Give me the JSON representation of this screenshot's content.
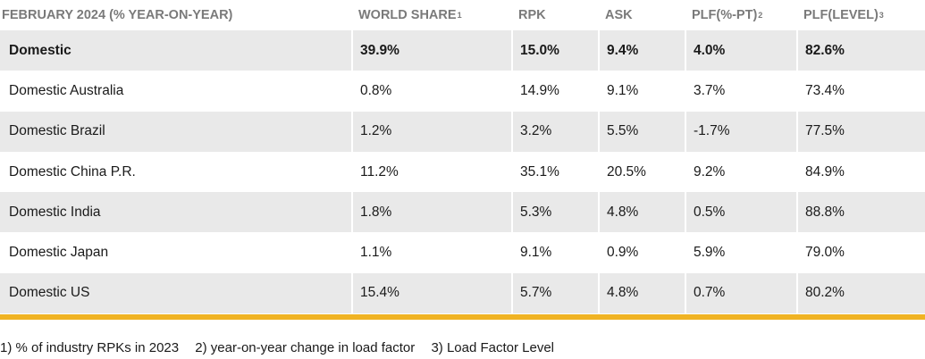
{
  "table": {
    "headers": [
      {
        "label": "FEBRUARY 2024 (% YEAR-ON-YEAR)",
        "sup": ""
      },
      {
        "label": "WORLD SHARE",
        "sup": "1"
      },
      {
        "label": "RPK",
        "sup": ""
      },
      {
        "label": "ASK",
        "sup": ""
      },
      {
        "label": "PLF(%-PT)",
        "sup": "2"
      },
      {
        "label": "PLF(LEVEL)",
        "sup": "3"
      }
    ],
    "rows": [
      [
        "Domestic",
        "39.9%",
        "15.0%",
        "9.4%",
        "4.0%",
        "82.6%"
      ],
      [
        "Domestic Australia",
        "0.8%",
        "14.9%",
        "9.1%",
        "3.7%",
        "73.4%"
      ],
      [
        "Domestic Brazil",
        "1.2%",
        "3.2%",
        "5.5%",
        "-1.7%",
        "77.5%"
      ],
      [
        "Domestic China P.R.",
        "11.2%",
        "35.1%",
        "20.5%",
        "9.2%",
        "84.9%"
      ],
      [
        "Domestic India",
        "1.8%",
        "5.3%",
        "4.8%",
        "0.5%",
        "88.8%"
      ],
      [
        "Domestic Japan",
        "1.1%",
        "9.1%",
        "0.9%",
        "5.9%",
        "79.0%"
      ],
      [
        "Domestic US",
        "15.4%",
        "5.7%",
        "4.8%",
        "0.7%",
        "80.2%"
      ]
    ]
  },
  "footnotes": [
    "1) % of industry RPKs in 2023",
    "2) year-on-year change in load factor",
    "3) Load Factor Level"
  ],
  "colors": {
    "accent_rule": "#f0b323",
    "shaded_row": "#e9e9e9",
    "header_text": "#7a7a7a"
  }
}
